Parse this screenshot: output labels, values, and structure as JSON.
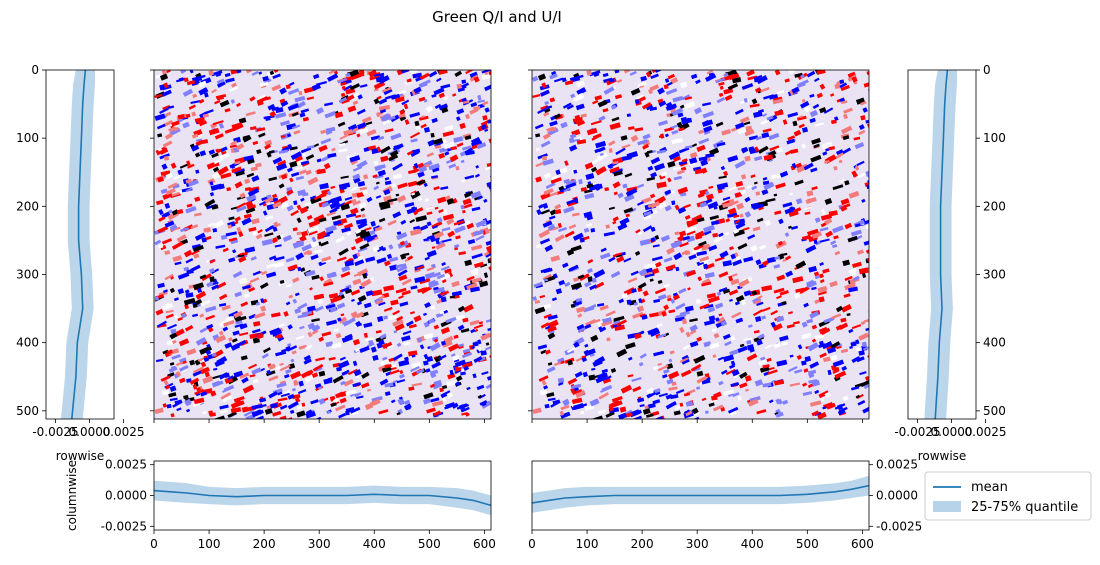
{
  "figure_title": "Green Q/I and U/I",
  "colors": {
    "line": "#1f77b4",
    "band": "#b7d3ea",
    "image_red": "#ff0000",
    "image_blue": "#0000ff",
    "image_dark": "#000000"
  },
  "chart_data": [
    {
      "id": "left-image",
      "type": "heatmap",
      "colormap": "seismic",
      "xlim": [
        0,
        612
      ],
      "ylim": [
        512,
        0
      ],
      "xticks": [
        0,
        100,
        200,
        300,
        400,
        500,
        600
      ],
      "yticks": [
        0,
        100,
        200,
        300,
        400,
        500
      ],
      "tick_labels_visible": false
    },
    {
      "id": "right-image",
      "type": "heatmap",
      "colormap": "seismic",
      "xlim": [
        0,
        612
      ],
      "ylim": [
        512,
        0
      ],
      "xticks": [
        0,
        100,
        200,
        300,
        400,
        500,
        600
      ],
      "yticks": [
        0,
        100,
        200,
        300,
        400,
        500
      ],
      "tick_labels_visible": false
    },
    {
      "id": "left-rowwise",
      "type": "line",
      "orientation": "vertical",
      "xlabel": "rowwise",
      "xlim": [
        -0.0032,
        0.0018
      ],
      "xticks": [
        -0.0025,
        0.0,
        0.0025
      ],
      "xtick_labels": [
        "-0.0025",
        "0.0000",
        "0.0025"
      ],
      "ylim": [
        512,
        0
      ],
      "yticks": [
        0,
        100,
        200,
        300,
        400,
        500
      ],
      "ytick_labels": [
        "0",
        "100",
        "200",
        "300",
        "400",
        "500"
      ],
      "rows": [
        0,
        20,
        50,
        100,
        150,
        200,
        250,
        300,
        350,
        400,
        450,
        512
      ],
      "mean": [
        -0.0003,
        -0.0004,
        -0.0005,
        -0.0006,
        -0.0007,
        -0.0008,
        -0.0008,
        -0.0006,
        -0.0005,
        -0.0009,
        -0.001,
        -0.0013
      ],
      "q25": [
        -0.001,
        -0.0012,
        -0.0013,
        -0.0014,
        -0.0015,
        -0.0016,
        -0.0016,
        -0.0014,
        -0.0013,
        -0.0017,
        -0.0018,
        -0.0021
      ],
      "q75": [
        0.0004,
        0.0004,
        0.0003,
        0.0002,
        0.0001,
        0.0,
        0.0,
        0.0002,
        0.0003,
        -0.0001,
        -0.0002,
        -0.0005
      ]
    },
    {
      "id": "right-rowwise",
      "type": "line",
      "orientation": "vertical",
      "xlabel": "rowwise",
      "xlim": [
        -0.0032,
        0.0018
      ],
      "xticks": [
        -0.0025,
        0.0,
        0.0025
      ],
      "xtick_labels": [
        "-0.0025",
        "0.0000",
        "0.0025"
      ],
      "ylim": [
        512,
        0
      ],
      "yticks": [
        0,
        100,
        200,
        300,
        400,
        500
      ],
      "ytick_labels": [
        "0",
        "100",
        "200",
        "300",
        "400",
        "500"
      ],
      "rows": [
        0,
        20,
        50,
        100,
        150,
        200,
        250,
        300,
        350,
        400,
        450,
        512
      ],
      "mean": [
        -0.0003,
        -0.0004,
        -0.0005,
        -0.0006,
        -0.0007,
        -0.0008,
        -0.0008,
        -0.0008,
        -0.0007,
        -0.0009,
        -0.001,
        -0.0012
      ],
      "q25": [
        -0.001,
        -0.0012,
        -0.0013,
        -0.0014,
        -0.0015,
        -0.0016,
        -0.0016,
        -0.0016,
        -0.0015,
        -0.0017,
        -0.0018,
        -0.002
      ],
      "q75": [
        0.0004,
        0.0004,
        0.0003,
        0.0002,
        0.0001,
        0.0,
        0.0,
        0.0,
        0.0001,
        -0.0001,
        -0.0002,
        -0.0004
      ]
    },
    {
      "id": "left-columnwise",
      "type": "line",
      "ylabel": "columnwise",
      "ylim": [
        -0.0028,
        0.0028
      ],
      "yticks": [
        -0.0025,
        0.0,
        0.0025
      ],
      "ytick_labels": [
        "-0.0025",
        "0.0000",
        "0.0025"
      ],
      "xlim": [
        0,
        612
      ],
      "xticks": [
        0,
        100,
        200,
        300,
        400,
        500,
        600
      ],
      "xtick_labels": [
        "0",
        "100",
        "200",
        "300",
        "400",
        "500",
        "600"
      ],
      "x": [
        0,
        30,
        60,
        100,
        150,
        200,
        250,
        300,
        350,
        400,
        450,
        500,
        550,
        580,
        612
      ],
      "mean": [
        0.0004,
        0.0003,
        0.0002,
        0.0,
        -0.0001,
        0.0,
        0.0,
        0.0,
        0.0,
        0.0001,
        0.0,
        0.0,
        -0.0002,
        -0.0004,
        -0.0008
      ],
      "q25": [
        -0.0004,
        -0.0005,
        -0.0006,
        -0.0007,
        -0.0008,
        -0.0007,
        -0.0007,
        -0.0007,
        -0.0007,
        -0.0006,
        -0.0007,
        -0.0007,
        -0.001,
        -0.0012,
        -0.0016
      ],
      "q75": [
        0.0012,
        0.0011,
        0.001,
        0.0007,
        0.0006,
        0.0007,
        0.0007,
        0.0007,
        0.0007,
        0.0008,
        0.0007,
        0.0007,
        0.0006,
        0.0004,
        0.0
      ]
    },
    {
      "id": "right-columnwise",
      "type": "line",
      "ylim": [
        -0.0028,
        0.0028
      ],
      "yticks": [
        -0.0025,
        0.0,
        0.0025
      ],
      "ytick_labels": [
        "-0.0025",
        "0.0000",
        "0.0025"
      ],
      "xlim": [
        0,
        612
      ],
      "xticks": [
        0,
        100,
        200,
        300,
        400,
        500,
        600
      ],
      "xtick_labels": [
        "0",
        "100",
        "200",
        "300",
        "400",
        "500",
        "600"
      ],
      "x": [
        0,
        30,
        60,
        100,
        150,
        200,
        250,
        300,
        350,
        400,
        450,
        500,
        550,
        580,
        612
      ],
      "mean": [
        -0.0006,
        -0.0004,
        -0.0002,
        -0.0001,
        0.0,
        0.0,
        0.0,
        0.0,
        0.0,
        0.0,
        0.0,
        0.0001,
        0.0003,
        0.0005,
        0.0008
      ],
      "q25": [
        -0.0014,
        -0.0012,
        -0.001,
        -0.0008,
        -0.0007,
        -0.0007,
        -0.0007,
        -0.0007,
        -0.0007,
        -0.0007,
        -0.0007,
        -0.0006,
        -0.0004,
        -0.0002,
        0.0
      ],
      "q75": [
        0.0002,
        0.0004,
        0.0006,
        0.0007,
        0.0007,
        0.0007,
        0.0007,
        0.0007,
        0.0007,
        0.0007,
        0.0007,
        0.0008,
        0.001,
        0.0012,
        0.0016
      ]
    }
  ],
  "legend": {
    "position": "lower-right",
    "entries": [
      {
        "label": "mean",
        "kind": "line"
      },
      {
        "label": "25-75% quantile",
        "kind": "band"
      }
    ]
  }
}
